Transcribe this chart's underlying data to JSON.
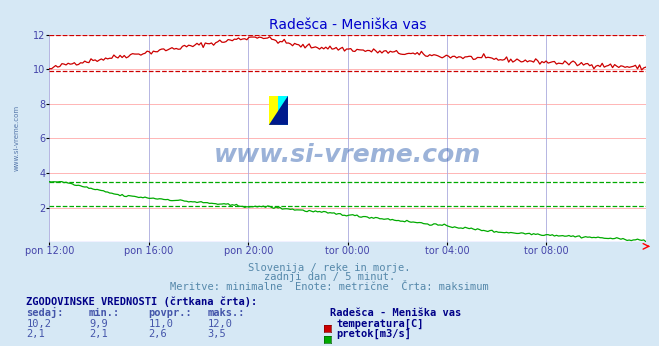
{
  "title": "Radešca - Meniška vas",
  "bg_color": "#d6e8f5",
  "plot_bg_color": "#ffffff",
  "grid_color_h": "#ffaaaa",
  "grid_color_v": "#aaaadd",
  "xlabel_color": "#4444aa",
  "ylabel_color": "#4444aa",
  "title_color": "#0000cc",
  "watermark_text": "www.si-vreme.com",
  "watermark_color": "#2255aa",
  "subtitle_lines": [
    "Slovenija / reke in morje.",
    "zadnji dan / 5 minut.",
    "Meritve: minimalne  Enote: metrične  Črta: maksimum"
  ],
  "subtitle_color": "#5588aa",
  "xtick_labels": [
    "pon 12:00",
    "pon 16:00",
    "pon 20:00",
    "tor 00:00",
    "tor 04:00",
    "tor 08:00"
  ],
  "xtick_positions": [
    0.0,
    0.1667,
    0.3333,
    0.5,
    0.6667,
    0.8333
  ],
  "ylim": [
    0,
    12
  ],
  "yticks": [
    2,
    4,
    6,
    8,
    10,
    12
  ],
  "temp_color": "#cc0000",
  "flow_color": "#00aa00",
  "table_title": "ZGODOVINSKE VREDNOSTI (črtkana črta):",
  "table_headers": [
    "sedaj:",
    "min.:",
    "povpr.:",
    "maks.:"
  ],
  "table_row1": [
    "10,2",
    "9,9",
    "11,0",
    "12,0",
    "temperatura[C]"
  ],
  "table_row2": [
    "2,1",
    "2,1",
    "2,6",
    "3,5",
    "pretok[m3/s]"
  ],
  "legend_title": "Radešca - Meniška vas",
  "temp_max_line": 12.0,
  "flow_max_line": 3.5,
  "temp_min_line": 9.9,
  "flow_min_line": 2.1
}
